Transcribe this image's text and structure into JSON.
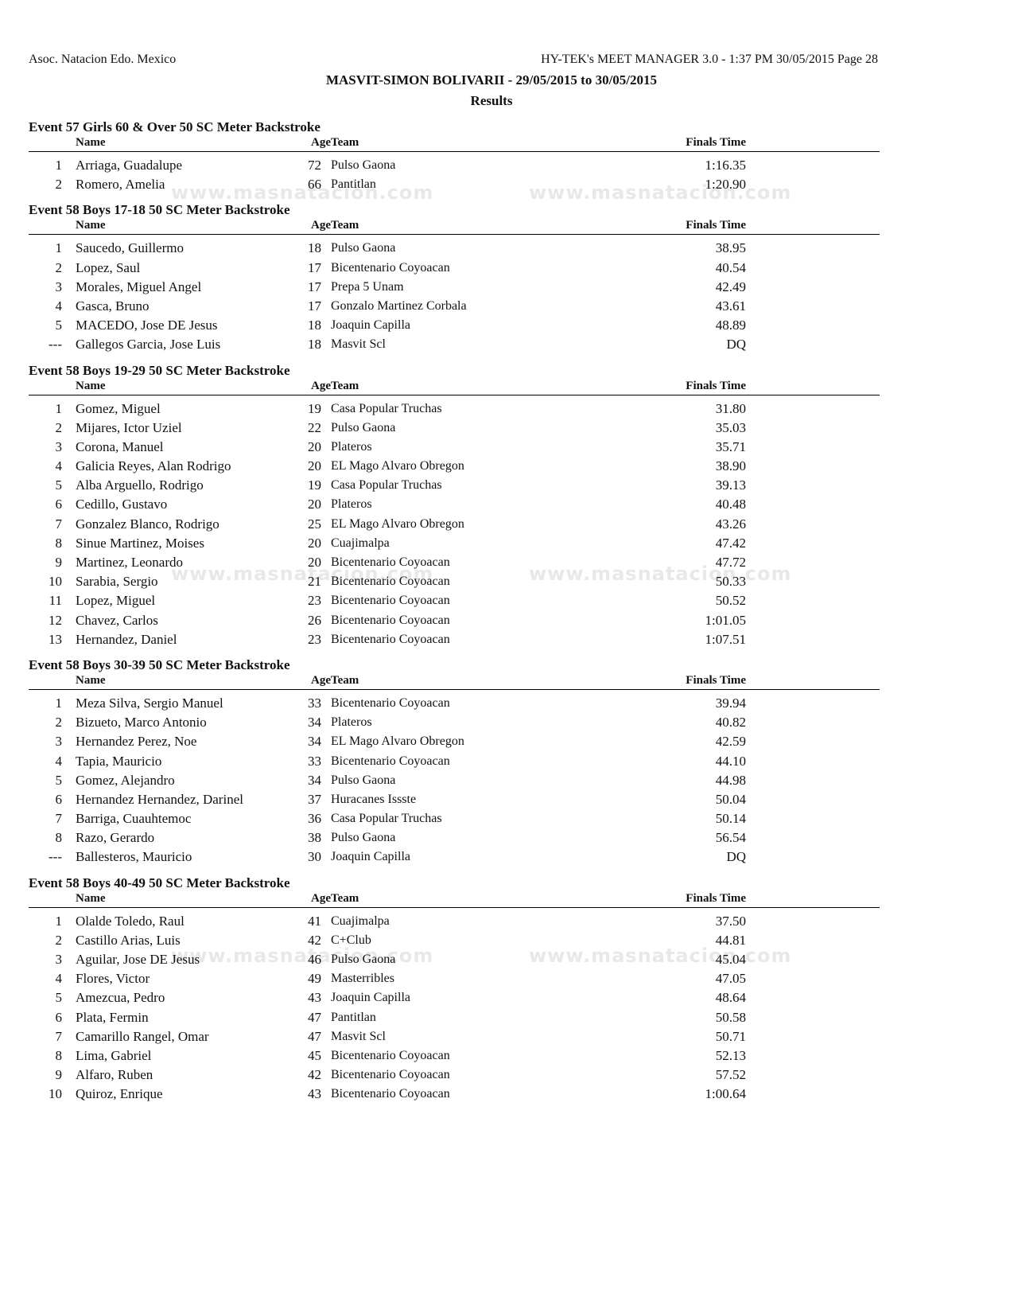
{
  "header": {
    "org": "Asoc. Natacion Edo. Mexico",
    "software": "HY-TEK's MEET MANAGER 3.0 - 1:37 PM  30/05/2015  Page 28",
    "meet": "MASVIT-SIMON BOLIVARII - 29/05/2015 to 30/05/2015",
    "subtitle": "Results"
  },
  "columns": {
    "name": "Name",
    "age": "Age",
    "team": "Team",
    "time": "Finals Time"
  },
  "watermark": "www.masnatacion.com",
  "events": [
    {
      "title": "Event 57  Girls 60 & Over 50 SC Meter Backstroke",
      "rows": [
        [
          "1",
          "Arriaga, Guadalupe",
          "72",
          "Pulso Gaona",
          "1:16.35"
        ],
        [
          "2",
          "Romero, Amelia",
          "66",
          "Pantitlan",
          "1:20.90"
        ]
      ]
    },
    {
      "title": "Event 58  Boys 17-18 50 SC Meter Backstroke",
      "rows": [
        [
          "1",
          "Saucedo, Guillermo",
          "18",
          "Pulso Gaona",
          "38.95"
        ],
        [
          "2",
          "Lopez, Saul",
          "17",
          "Bicentenario Coyoacan",
          "40.54"
        ],
        [
          "3",
          "Morales, Miguel Angel",
          "17",
          "Prepa 5 Unam",
          "42.49"
        ],
        [
          "4",
          "Gasca, Bruno",
          "17",
          "Gonzalo Martinez Corbala",
          "43.61"
        ],
        [
          "5",
          "MACEDO, Jose DE Jesus",
          "18",
          "Joaquin Capilla",
          "48.89"
        ],
        [
          "---",
          "Gallegos Garcia, Jose Luis",
          "18",
          "Masvit Scl",
          "DQ"
        ]
      ]
    },
    {
      "title": "Event 58  Boys 19-29 50 SC Meter Backstroke",
      "rows": [
        [
          "1",
          "Gomez, Miguel",
          "19",
          "Casa Popular Truchas",
          "31.80"
        ],
        [
          "2",
          "Mijares, Ictor Uziel",
          "22",
          "Pulso Gaona",
          "35.03"
        ],
        [
          "3",
          "Corona, Manuel",
          "20",
          "Plateros",
          "35.71"
        ],
        [
          "4",
          "Galicia Reyes, Alan Rodrigo",
          "20",
          "EL Mago Alvaro Obregon",
          "38.90"
        ],
        [
          "5",
          "Alba Arguello, Rodrigo",
          "19",
          "Casa Popular Truchas",
          "39.13"
        ],
        [
          "6",
          "Cedillo, Gustavo",
          "20",
          "Plateros",
          "40.48"
        ],
        [
          "7",
          "Gonzalez Blanco, Rodrigo",
          "25",
          "EL Mago Alvaro Obregon",
          "43.26"
        ],
        [
          "8",
          "Sinue Martinez, Moises",
          "20",
          "Cuajimalpa",
          "47.42"
        ],
        [
          "9",
          "Martinez, Leonardo",
          "20",
          "Bicentenario Coyoacan",
          "47.72"
        ],
        [
          "10",
          "Sarabia, Sergio",
          "21",
          "Bicentenario Coyoacan",
          "50.33"
        ],
        [
          "11",
          "Lopez, Miguel",
          "23",
          "Bicentenario Coyoacan",
          "50.52"
        ],
        [
          "12",
          "Chavez, Carlos",
          "26",
          "Bicentenario Coyoacan",
          "1:01.05"
        ],
        [
          "13",
          "Hernandez, Daniel",
          "23",
          "Bicentenario Coyoacan",
          "1:07.51"
        ]
      ]
    },
    {
      "title": "Event 58  Boys 30-39 50 SC Meter Backstroke",
      "rows": [
        [
          "1",
          "Meza Silva, Sergio Manuel",
          "33",
          "Bicentenario Coyoacan",
          "39.94"
        ],
        [
          "2",
          "Bizueto, Marco Antonio",
          "34",
          "Plateros",
          "40.82"
        ],
        [
          "3",
          "Hernandez Perez, Noe",
          "34",
          "EL Mago Alvaro Obregon",
          "42.59"
        ],
        [
          "4",
          "Tapia, Mauricio",
          "33",
          "Bicentenario Coyoacan",
          "44.10"
        ],
        [
          "5",
          "Gomez, Alejandro",
          "34",
          "Pulso Gaona",
          "44.98"
        ],
        [
          "6",
          "Hernandez Hernandez, Darinel",
          "37",
          "Huracanes Issste",
          "50.04"
        ],
        [
          "7",
          "Barriga, Cuauhtemoc",
          "36",
          "Casa Popular Truchas",
          "50.14"
        ],
        [
          "8",
          "Razo, Gerardo",
          "38",
          "Pulso Gaona",
          "56.54"
        ],
        [
          "---",
          "Ballesteros, Mauricio",
          "30",
          "Joaquin Capilla",
          "DQ"
        ]
      ]
    },
    {
      "title": "Event 58  Boys 40-49 50 SC Meter Backstroke",
      "rows": [
        [
          "1",
          "Olalde Toledo, Raul",
          "41",
          "Cuajimalpa",
          "37.50"
        ],
        [
          "2",
          "Castillo Arias, Luis",
          "42",
          "C+Club",
          "44.81"
        ],
        [
          "3",
          "Aguilar, Jose DE Jesus",
          "46",
          "Pulso Gaona",
          "45.04"
        ],
        [
          "4",
          "Flores, Victor",
          "49",
          "Masterribles",
          "47.05"
        ],
        [
          "5",
          "Amezcua, Pedro",
          "43",
          "Joaquin Capilla",
          "48.64"
        ],
        [
          "6",
          "Plata, Fermin",
          "47",
          "Pantitlan",
          "50.58"
        ],
        [
          "7",
          "Camarillo Rangel, Omar",
          "47",
          "Masvit Scl",
          "50.71"
        ],
        [
          "8",
          "Lima, Gabriel",
          "45",
          "Bicentenario Coyoacan",
          "52.13"
        ],
        [
          "9",
          "Alfaro, Ruben",
          "42",
          "Bicentenario Coyoacan",
          "57.52"
        ],
        [
          "10",
          "Quiroz, Enrique",
          "43",
          "Bicentenario Coyoacan",
          "1:00.64"
        ]
      ]
    }
  ]
}
